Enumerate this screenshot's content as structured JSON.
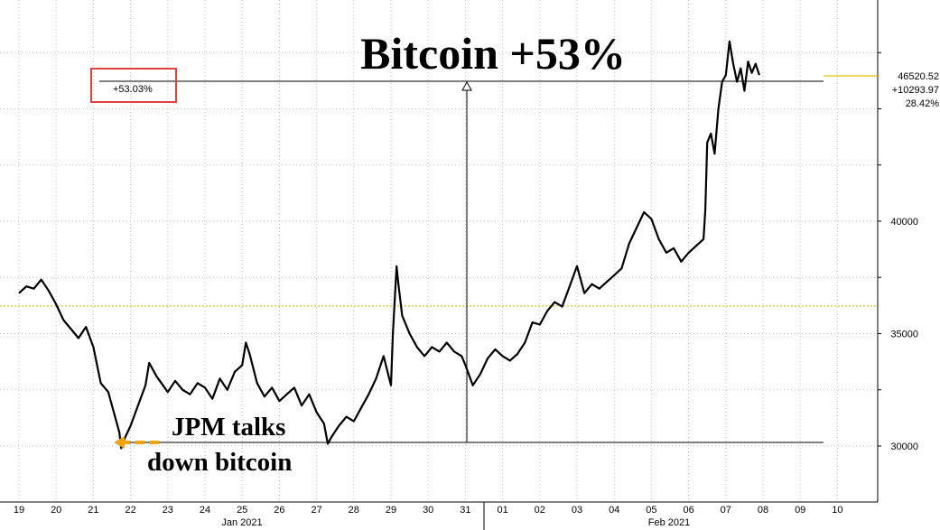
{
  "chart_data": {
    "type": "line",
    "title": "Bitcoin +53%",
    "months": [
      "Jan 2021",
      "Feb 2021"
    ],
    "x_ticks": [
      "19",
      "20",
      "21",
      "22",
      "23",
      "24",
      "25",
      "26",
      "27",
      "28",
      "29",
      "30",
      "31",
      "01",
      "02",
      "03",
      "04",
      "05",
      "06",
      "07",
      "08",
      "09",
      "10"
    ],
    "y_ticks": [
      30000,
      35000,
      40000
    ],
    "ylim": [
      28500,
      47500
    ],
    "grid": true,
    "series": [
      {
        "values": [
          [
            19.0,
            36800
          ],
          [
            19.2,
            37100
          ],
          [
            19.4,
            37000
          ],
          [
            19.6,
            37400
          ],
          [
            19.8,
            36900
          ],
          [
            20.0,
            36300
          ],
          [
            20.2,
            35600
          ],
          [
            20.4,
            35200
          ],
          [
            20.6,
            34800
          ],
          [
            20.8,
            35300
          ],
          [
            21.0,
            34400
          ],
          [
            21.2,
            32800
          ],
          [
            21.4,
            32400
          ],
          [
            21.6,
            31200
          ],
          [
            21.7,
            30600
          ],
          [
            21.75,
            29900
          ],
          [
            21.8,
            30200
          ],
          [
            22.0,
            30900
          ],
          [
            22.2,
            31800
          ],
          [
            22.4,
            32700
          ],
          [
            22.5,
            33700
          ],
          [
            22.7,
            33100
          ],
          [
            23.0,
            32400
          ],
          [
            23.2,
            32900
          ],
          [
            23.4,
            32500
          ],
          [
            23.6,
            32300
          ],
          [
            23.8,
            32800
          ],
          [
            24.0,
            32600
          ],
          [
            24.2,
            32100
          ],
          [
            24.4,
            33000
          ],
          [
            24.6,
            32500
          ],
          [
            24.8,
            33300
          ],
          [
            25.0,
            33600
          ],
          [
            25.1,
            34600
          ],
          [
            25.2,
            34100
          ],
          [
            25.4,
            32800
          ],
          [
            25.6,
            32200
          ],
          [
            25.8,
            32600
          ],
          [
            26.0,
            32000
          ],
          [
            26.2,
            32300
          ],
          [
            26.4,
            32600
          ],
          [
            26.6,
            31800
          ],
          [
            26.8,
            32300
          ],
          [
            27.0,
            31500
          ],
          [
            27.2,
            31000
          ],
          [
            27.3,
            30100
          ],
          [
            27.4,
            30400
          ],
          [
            27.6,
            30900
          ],
          [
            27.8,
            31300
          ],
          [
            28.0,
            31100
          ],
          [
            28.2,
            31700
          ],
          [
            28.4,
            32300
          ],
          [
            28.6,
            33000
          ],
          [
            28.8,
            34000
          ],
          [
            29.0,
            32700
          ],
          [
            29.05,
            35000
          ],
          [
            29.15,
            38000
          ],
          [
            29.2,
            37200
          ],
          [
            29.3,
            35800
          ],
          [
            29.5,
            35000
          ],
          [
            29.7,
            34400
          ],
          [
            29.9,
            34000
          ],
          [
            30.1,
            34400
          ],
          [
            30.3,
            34200
          ],
          [
            30.5,
            34600
          ],
          [
            30.7,
            34200
          ],
          [
            30.9,
            34000
          ],
          [
            31.0,
            33600
          ],
          [
            31.2,
            32700
          ],
          [
            31.4,
            33200
          ],
          [
            31.6,
            33900
          ],
          [
            31.8,
            34300
          ],
          [
            32.0,
            34000
          ],
          [
            32.2,
            33800
          ],
          [
            32.4,
            34100
          ],
          [
            32.6,
            34600
          ],
          [
            32.8,
            35500
          ],
          [
            33.0,
            35400
          ],
          [
            33.2,
            36000
          ],
          [
            33.4,
            36400
          ],
          [
            33.6,
            36200
          ],
          [
            33.8,
            37100
          ],
          [
            34.0,
            38000
          ],
          [
            34.2,
            36800
          ],
          [
            34.4,
            37200
          ],
          [
            34.6,
            37000
          ],
          [
            34.8,
            37300
          ],
          [
            35.0,
            37600
          ],
          [
            35.2,
            37900
          ],
          [
            35.4,
            39000
          ],
          [
            35.6,
            39700
          ],
          [
            35.8,
            40400
          ],
          [
            36.0,
            40100
          ],
          [
            36.2,
            39200
          ],
          [
            36.4,
            38600
          ],
          [
            36.6,
            38800
          ],
          [
            36.8,
            38200
          ],
          [
            37.0,
            38600
          ],
          [
            37.2,
            38900
          ],
          [
            37.4,
            39200
          ],
          [
            37.45,
            40500
          ],
          [
            37.5,
            43500
          ],
          [
            37.6,
            43900
          ],
          [
            37.7,
            43000
          ],
          [
            37.8,
            45000
          ],
          [
            37.9,
            46200
          ],
          [
            38.0,
            46500
          ],
          [
            38.1,
            48000
          ],
          [
            38.2,
            47000
          ],
          [
            38.3,
            46200
          ],
          [
            38.4,
            46800
          ],
          [
            38.5,
            45800
          ],
          [
            38.6,
            47100
          ],
          [
            38.7,
            46600
          ],
          [
            38.8,
            47000
          ],
          [
            38.9,
            46500
          ]
        ]
      }
    ],
    "reference_line": 36227,
    "last_value_label": "46520.52",
    "change_label": "+10293.97",
    "change_pct_label": "28.42%",
    "measure_label": "+53.03%",
    "annotation": [
      "JPM talks",
      "down bitcoin"
    ],
    "colors": {
      "line": "#000000",
      "grid": "#bfbfbf",
      "reference": "#c8c800",
      "arrow": "#f0a500",
      "box": "#e04040",
      "marker": "#e8c000"
    }
  }
}
